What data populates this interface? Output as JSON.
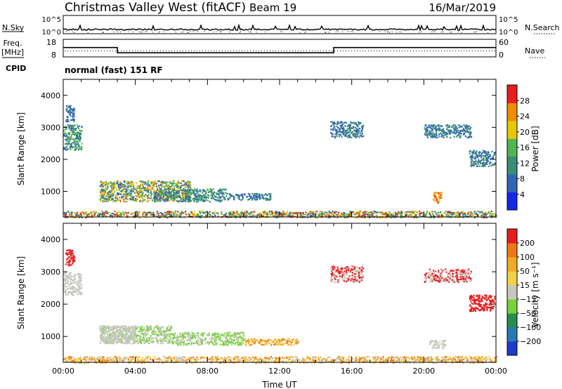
{
  "header": {
    "title": "Christmas Valley West (fitACF)",
    "beam": "Beam 19",
    "date": "16/Mar/2019"
  },
  "info_panel": {
    "nsky_label": "N.Sky",
    "nsky_ticks": [
      "10^5",
      "10^0"
    ],
    "nsearch_label": "N.Search",
    "nsearch_ticks": [
      "10^5",
      "10^0"
    ],
    "freq_label_1": "Freq.",
    "freq_label_2": "[MHz]",
    "freq_ticks": [
      "18",
      "8"
    ],
    "nave_label": "Nave",
    "nave_ticks": [
      "60",
      "0"
    ],
    "cpid_label": "CPID",
    "cpid_value": "normal (fast) 151 RF",
    "freq_steps": [
      {
        "t": 0.0,
        "v": 13.6
      },
      {
        "t": 3.0,
        "v": 10.2
      },
      {
        "t": 15.0,
        "v": 13.6
      },
      {
        "t": 24.0,
        "v": 13.6
      }
    ]
  },
  "chart_data": [
    {
      "type": "heatmap",
      "name": "power",
      "ylabel": "Slant Range [km]",
      "yticks": [
        "1000",
        "2000",
        "3000",
        "4000"
      ],
      "ylim": [
        200,
        4500
      ],
      "xlim": [
        0,
        24
      ],
      "colorbar": {
        "label": "Power [dB]",
        "ticks": [
          "4",
          "8",
          "12",
          "16",
          "20",
          "24",
          "28"
        ],
        "colors": [
          "#1428e6",
          "#3264b4",
          "#3c8c78",
          "#50b450",
          "#e6c800",
          "#f08c00",
          "#e61e1e"
        ]
      },
      "regions": [
        {
          "t0": 2.0,
          "t1": 7.0,
          "r0": 700,
          "r1": 1350,
          "c": [
            1,
            2,
            3,
            4,
            5
          ]
        },
        {
          "t0": 5.0,
          "t1": 9.0,
          "r0": 700,
          "r1": 1100,
          "c": [
            1,
            2,
            3
          ]
        },
        {
          "t0": 9.0,
          "t1": 11.5,
          "r0": 750,
          "r1": 950,
          "c": [
            1,
            2
          ]
        },
        {
          "t0": 0.0,
          "t1": 1.0,
          "r0": 2300,
          "r1": 3100,
          "c": [
            1,
            2,
            3
          ]
        },
        {
          "t0": 0.1,
          "t1": 0.6,
          "r0": 3200,
          "r1": 3700,
          "c": [
            1,
            2
          ]
        },
        {
          "t0": 14.8,
          "t1": 16.6,
          "r0": 2700,
          "r1": 3200,
          "c": [
            1,
            2
          ]
        },
        {
          "t0": 20.0,
          "t1": 22.6,
          "r0": 2700,
          "r1": 3100,
          "c": [
            1,
            2
          ]
        },
        {
          "t0": 22.5,
          "t1": 23.9,
          "r0": 1800,
          "r1": 2300,
          "c": [
            1,
            2
          ]
        },
        {
          "t0": 20.5,
          "t1": 21.0,
          "r0": 650,
          "r1": 1000,
          "c": [
            4,
            5,
            6
          ]
        },
        {
          "t0": 0.0,
          "t1": 24.0,
          "r0": 200,
          "r1": 400,
          "c": [
            1,
            2,
            3,
            4,
            5,
            6
          ]
        }
      ]
    },
    {
      "type": "heatmap",
      "name": "velocity",
      "ylabel": "Slant Range [km]",
      "yticks": [
        "1000",
        "2000",
        "3000",
        "4000"
      ],
      "ylim": [
        200,
        4500
      ],
      "xlim": [
        0,
        24
      ],
      "xticks": [
        "00:00",
        "04:00",
        "08:00",
        "12:00",
        "16:00",
        "20:00",
        "00:00"
      ],
      "xlabel": "Time UT",
      "colorbar": {
        "label": "Velocity [m s⁻¹]",
        "ticks": [
          "200",
          "100",
          "50",
          "15",
          "−15",
          "−50",
          "−100",
          "−200"
        ],
        "colors": [
          "#1e3cc8",
          "#2878b4",
          "#288c50",
          "#78d23c",
          "#c8c8c0",
          "#f0d246",
          "#f0aa28",
          "#f07814",
          "#e61e1e"
        ]
      },
      "regions": [
        {
          "t0": 2.0,
          "t1": 6.0,
          "r0": 800,
          "r1": 1350,
          "c": [
            3,
            4
          ]
        },
        {
          "t0": 2.0,
          "t1": 4.0,
          "r0": 800,
          "r1": 1350,
          "c": [
            4
          ]
        },
        {
          "t0": 6.0,
          "t1": 10.0,
          "r0": 750,
          "r1": 1150,
          "c": [
            3,
            4
          ]
        },
        {
          "t0": 10.0,
          "t1": 13.0,
          "r0": 750,
          "r1": 950,
          "c": [
            5,
            6,
            7
          ]
        },
        {
          "t0": 0.0,
          "t1": 1.0,
          "r0": 2300,
          "r1": 3000,
          "c": [
            4
          ]
        },
        {
          "t0": 0.1,
          "t1": 0.6,
          "r0": 3200,
          "r1": 3700,
          "c": [
            8
          ]
        },
        {
          "t0": 14.8,
          "t1": 16.6,
          "r0": 2700,
          "r1": 3200,
          "c": [
            8,
            4
          ]
        },
        {
          "t0": 20.0,
          "t1": 22.6,
          "r0": 2700,
          "r1": 3100,
          "c": [
            8,
            4
          ]
        },
        {
          "t0": 22.5,
          "t1": 23.9,
          "r0": 1800,
          "r1": 2300,
          "c": [
            8
          ]
        },
        {
          "t0": 20.3,
          "t1": 21.2,
          "r0": 650,
          "r1": 900,
          "c": [
            4
          ]
        },
        {
          "t0": 0.0,
          "t1": 24.0,
          "r0": 200,
          "r1": 400,
          "c": [
            5,
            6,
            7,
            4
          ]
        }
      ]
    }
  ]
}
